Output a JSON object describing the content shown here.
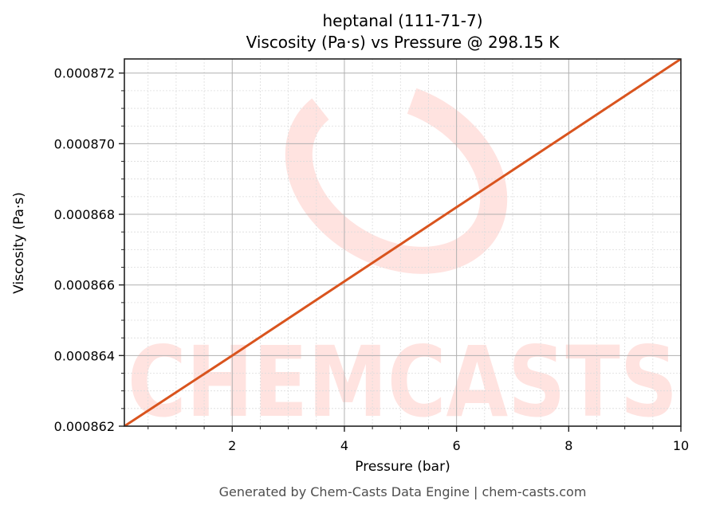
{
  "chart_data": {
    "type": "line",
    "title": "heptanal (111-71-7)",
    "subtitle": "Viscosity (Pa·s) vs Pressure @ 298.15 K",
    "xlabel": "Pressure (bar)",
    "ylabel": "Viscosity (Pa·s)",
    "xlim": [
      0.077,
      10
    ],
    "ylim": [
      0.000862,
      0.0008724
    ],
    "x_ticks": [
      2,
      4,
      6,
      8,
      10
    ],
    "x_tick_labels": [
      "2",
      "4",
      "6",
      "8",
      "10"
    ],
    "x_minor_step": 0.5,
    "y_ticks": [
      0.000862,
      0.000864,
      0.000866,
      0.000868,
      0.00087,
      0.000872
    ],
    "y_tick_labels": [
      "0.000862",
      "0.000864",
      "0.000866",
      "0.000868",
      "0.000870",
      "0.000872"
    ],
    "y_minor_step": 5e-07,
    "grid": true,
    "legend": null,
    "series": [
      {
        "name": "Viscosity",
        "color": "#d9541e",
        "x": [
          0.077,
          2,
          4,
          6,
          8,
          10
        ],
        "values": [
          0.000862,
          0.000864,
          0.0008661,
          0.0008682,
          0.0008703,
          0.0008724
        ]
      }
    ],
    "watermark": "CHEMCASTS"
  },
  "header": {
    "title_line1": "heptanal (111-71-7)",
    "title_line2": "Viscosity (Pa·s) vs Pressure @ 298.15 K"
  },
  "axes": {
    "xlabel": "Pressure (bar)",
    "ylabel": "Viscosity (Pa·s)"
  },
  "footer": {
    "text": "Generated by Chem-Casts Data Engine | chem-casts.com"
  },
  "colors": {
    "line": "#d9541e",
    "watermark": "#ffe3e0",
    "major_grid": "#b0b0b0",
    "minor_grid": "#dcdcdc",
    "frame": "#222222",
    "footer_text": "#4d4d4d"
  }
}
